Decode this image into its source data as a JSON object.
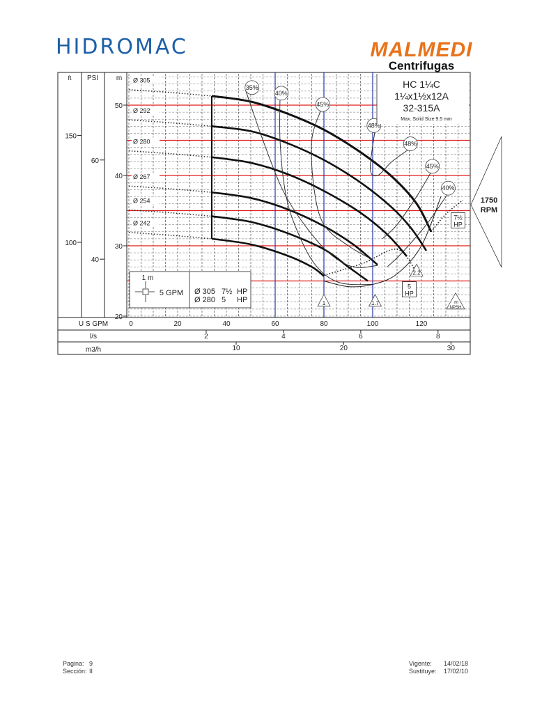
{
  "header": {
    "logo_left": "HIDROMAC",
    "logo_right_brand": "MALMEDI",
    "logo_right_sub": "Centrifugas"
  },
  "chart_data": {
    "type": "line",
    "title": "HC 1¼C",
    "subtitle_lines": [
      "1¼x1½x12A",
      "32-315A"
    ],
    "note": "Max. Solid Size 9.5  mm",
    "speed_label": "1750\nRPM",
    "xlabel": "U S  GPM",
    "xlim": [
      0,
      140
    ],
    "ylim_m": [
      20,
      55
    ],
    "x_ticks": [
      0,
      20,
      40,
      60,
      80,
      100,
      120
    ],
    "y_ticks_m": [
      20,
      30,
      40,
      50
    ],
    "m_label": "m",
    "ft_label": "ft",
    "psi_label": "PSI",
    "ft_ticks": [
      {
        "label": "150",
        "m": 45.7
      },
      {
        "label": "100",
        "m": 30.5
      }
    ],
    "psi_ticks": [
      {
        "label": "60",
        "m": 42.2
      },
      {
        "label": "40",
        "m": 28.1
      }
    ],
    "secondary_axes": [
      {
        "label": "l/s",
        "ticks": [
          {
            "label": "2",
            "gpm": 31.7
          },
          {
            "label": "4",
            "gpm": 63.4
          },
          {
            "label": "6",
            "gpm": 95.1
          },
          {
            "label": "8",
            "gpm": 126.8
          }
        ]
      },
      {
        "label": "m3/h",
        "ticks": [
          {
            "label": "10",
            "gpm": 44.0
          },
          {
            "label": "20",
            "gpm": 88.1
          },
          {
            "label": "30",
            "gpm": 132.1
          }
        ]
      }
    ],
    "series": [
      {
        "name": "Ø 305",
        "points": [
          [
            34,
            51.3
          ],
          [
            50,
            50.5
          ],
          [
            65,
            48.8
          ],
          [
            80,
            46.5
          ],
          [
            95,
            43.3
          ],
          [
            108,
            39.8
          ],
          [
            118,
            36.0
          ],
          [
            124,
            32.0
          ]
        ]
      },
      {
        "name": "Ø 292",
        "points": [
          [
            34,
            47.0
          ],
          [
            50,
            46.3
          ],
          [
            65,
            44.6
          ],
          [
            80,
            42.2
          ],
          [
            95,
            39.0
          ],
          [
            108,
            35.4
          ],
          [
            116,
            32.4
          ],
          [
            122,
            29.3
          ]
        ]
      },
      {
        "name": "Ø 280",
        "points": [
          [
            34,
            42.6
          ],
          [
            50,
            41.8
          ],
          [
            65,
            40.2
          ],
          [
            80,
            37.8
          ],
          [
            95,
            34.7
          ],
          [
            106,
            31.6
          ],
          [
            114,
            28.5
          ]
        ]
      },
      {
        "name": "Ø 267",
        "points": [
          [
            34,
            37.6
          ],
          [
            50,
            36.8
          ],
          [
            65,
            35.2
          ],
          [
            80,
            32.8
          ],
          [
            92,
            30.2
          ],
          [
            102,
            27.3
          ]
        ]
      },
      {
        "name": "Ø 254",
        "points": [
          [
            34,
            34.2
          ],
          [
            50,
            33.4
          ],
          [
            65,
            31.8
          ],
          [
            80,
            29.5
          ],
          [
            90,
            27.0
          ],
          [
            98,
            25.0
          ]
        ]
      },
      {
        "name": "Ø 242",
        "points": [
          [
            34,
            31.0
          ],
          [
            50,
            30.2
          ],
          [
            65,
            28.6
          ],
          [
            75,
            27.0
          ],
          [
            80,
            25.7
          ]
        ]
      }
    ],
    "efficiency_labels": [
      {
        "label": "35%",
        "x": 50.5,
        "y": 52.5
      },
      {
        "label": "40%",
        "x": 62.5,
        "y": 51.7
      },
      {
        "label": "45%",
        "x": 79.5,
        "y": 50.1
      },
      {
        "label": "48%",
        "x": 100.5,
        "y": 47.1
      },
      {
        "label": "48%",
        "x": 115.5,
        "y": 44.5
      },
      {
        "label": "45%",
        "x": 124.5,
        "y": 41.3
      },
      {
        "label": "40%",
        "x": 131.0,
        "y": 38.2
      }
    ],
    "npsh_labels": [
      {
        "label": "1",
        "x": 80,
        "y": 22.0
      },
      {
        "label": "1.7",
        "x": 101,
        "y": 22.0
      },
      {
        "label": "2.2",
        "x": 118,
        "y": 26.3
      }
    ],
    "npsh_axis_label": "m\nNPSH",
    "power_labels": [
      {
        "label": "5\nHP",
        "x": 115,
        "y": 24.0
      },
      {
        "label": "7½\nHP",
        "x": 135,
        "y": 33.8
      }
    ],
    "legend_box": {
      "scale_m": "1 m",
      "scale_gpm": "5 GPM",
      "rows": [
        {
          "dia": "Ø 305",
          "hp": "7½",
          "unit": "HP"
        },
        {
          "dia": "Ø 280",
          "hp": "5",
          "unit": "HP"
        }
      ]
    },
    "red_lines_m": [
      30,
      35,
      40,
      45,
      50,
      25
    ],
    "blue_lines_gpm": [
      60,
      80,
      100
    ]
  },
  "footer": {
    "pagina_label": "Pagina:",
    "pagina_value": "9",
    "seccion_label": "Sección:",
    "seccion_value": "II",
    "vigente_label": "Vigente:",
    "vigente_value": "14/02/18",
    "sustituye_label": "Sustituye:",
    "sustituye_value": "17/02/10"
  }
}
